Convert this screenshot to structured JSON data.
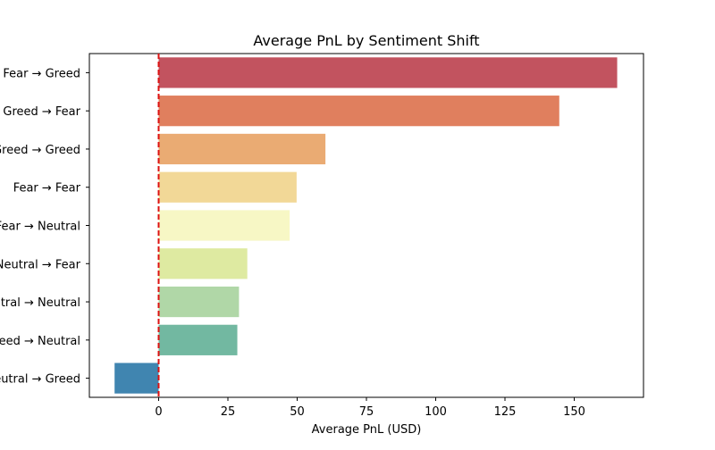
{
  "chart_data": {
    "type": "bar",
    "orientation": "horizontal",
    "title": "Average PnL by Sentiment Shift",
    "xlabel": "Average PnL (USD)",
    "ylabel": "",
    "xlim": [
      -25,
      175
    ],
    "xticks": [
      0,
      25,
      50,
      75,
      100,
      125,
      150
    ],
    "categories": [
      "Fear → Greed",
      "Greed → Fear",
      "Greed → Greed",
      "Fear → Fear",
      "Fear → Neutral",
      "Neutral → Fear",
      "Neutral → Neutral",
      "Greed → Neutral",
      "Neutral → Greed"
    ],
    "values": [
      165.5,
      144.6,
      60.2,
      49.8,
      47.3,
      32.0,
      29.0,
      28.4,
      -15.9
    ],
    "bar_colors": [
      "#c2535f",
      "#e07f5e",
      "#eaab73",
      "#f2d897",
      "#f7f7c5",
      "#deeaa1",
      "#b0d7a7",
      "#72b8a1",
      "#4085b0"
    ],
    "reference_line": {
      "x": 0,
      "color": "#dd1111",
      "style": "dashed"
    },
    "grid": false
  }
}
